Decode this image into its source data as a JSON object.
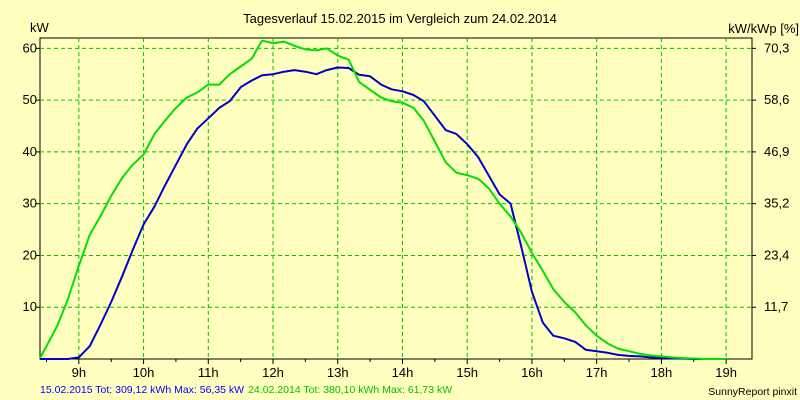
{
  "chart_data": {
    "type": "line",
    "title": "Tagesverlauf 15.02.2015 im Vergleich zum 24.02.2014",
    "ylabel_left": "kW",
    "ylabel_right": "kW/kWp [%]",
    "x_tick_labels": [
      "9h",
      "10h",
      "11h",
      "12h",
      "13h",
      "14h",
      "15h",
      "16h",
      "17h",
      "18h",
      "19h"
    ],
    "x_tick_hours": [
      9,
      10,
      11,
      12,
      13,
      14,
      15,
      16,
      17,
      18,
      19
    ],
    "xlim": [
      8.4,
      19.4
    ],
    "ylim": [
      0,
      62
    ],
    "y_ticks_left": [
      10,
      20,
      30,
      40,
      50,
      60
    ],
    "y_ticks_right": [
      "11,7",
      "23,4",
      "35,2",
      "46,9",
      "58,6",
      "70,3"
    ],
    "grid": true,
    "series": [
      {
        "color": "#0000c8",
        "x": [
          8.4,
          8.5,
          8.67,
          8.83,
          9.0,
          9.17,
          9.33,
          9.5,
          9.67,
          9.83,
          10.0,
          10.17,
          10.33,
          10.5,
          10.67,
          10.83,
          11.0,
          11.17,
          11.33,
          11.5,
          11.67,
          11.83,
          12.0,
          12.17,
          12.33,
          12.5,
          12.67,
          12.83,
          13.0,
          13.17,
          13.33,
          13.5,
          13.67,
          13.83,
          14.0,
          14.17,
          14.33,
          14.5,
          14.67,
          14.83,
          15.0,
          15.17,
          15.33,
          15.5,
          15.67,
          15.83,
          16.0,
          16.17,
          16.33,
          16.5,
          16.67,
          16.83,
          17.0,
          17.17,
          17.33,
          17.5,
          17.67,
          17.83,
          18.0,
          18.17,
          18.33,
          18.5,
          18.67,
          18.83,
          19.0
        ],
        "y": [
          0,
          0,
          0,
          0,
          0.3,
          2.5,
          6.5,
          11,
          16,
          21,
          26,
          29.5,
          33.5,
          37.5,
          41.5,
          44.5,
          46.5,
          48.5,
          49.8,
          52.5,
          53.8,
          54.8,
          55.0,
          55.5,
          55.8,
          55.5,
          55.0,
          55.8,
          56.3,
          56.2,
          54.9,
          54.6,
          53.0,
          52.1,
          51.7,
          51.0,
          49.8,
          47.0,
          44.2,
          43.5,
          41.5,
          39.0,
          35.5,
          31.8,
          30.0,
          22.0,
          13.0,
          7.0,
          4.5,
          4.0,
          3.3,
          1.8,
          1.5,
          1.2,
          0.8,
          0.6,
          0.5,
          0.3,
          0.2,
          0.1,
          0.1,
          0,
          0,
          0,
          0
        ]
      },
      {
        "color": "#00e000",
        "x": [
          8.4,
          8.5,
          8.67,
          8.83,
          9.0,
          9.17,
          9.33,
          9.5,
          9.67,
          9.83,
          10.0,
          10.17,
          10.33,
          10.5,
          10.67,
          10.83,
          11.0,
          11.17,
          11.33,
          11.5,
          11.67,
          11.83,
          12.0,
          12.17,
          12.33,
          12.5,
          12.67,
          12.83,
          13.0,
          13.17,
          13.33,
          13.5,
          13.67,
          13.83,
          14.0,
          14.17,
          14.33,
          14.5,
          14.67,
          14.83,
          15.0,
          15.17,
          15.33,
          15.5,
          15.67,
          15.83,
          16.0,
          16.17,
          16.33,
          16.5,
          16.67,
          16.83,
          17.0,
          17.17,
          17.33,
          17.5,
          17.67,
          17.83,
          18.0,
          18.17,
          18.33,
          18.5,
          18.67,
          18.83,
          19.0
        ],
        "y": [
          0.2,
          2.5,
          6.5,
          11.5,
          18.0,
          24.0,
          27.5,
          31.5,
          35.0,
          37.5,
          39.5,
          43.5,
          46.0,
          48.5,
          50.5,
          51.5,
          53.0,
          53.0,
          55.0,
          56.5,
          58.0,
          61.5,
          61.0,
          61.3,
          60.5,
          59.8,
          59.6,
          60.0,
          58.6,
          57.8,
          53.5,
          52.0,
          50.5,
          49.8,
          49.5,
          48.5,
          46.0,
          42.0,
          38.0,
          36.0,
          35.5,
          34.8,
          33.0,
          30.0,
          27.5,
          24.5,
          20.5,
          17.0,
          13.5,
          11.0,
          9.0,
          6.5,
          4.5,
          3.0,
          2.0,
          1.5,
          1.0,
          0.7,
          0.5,
          0.3,
          0.2,
          0.1,
          0,
          0,
          0
        ]
      }
    ]
  },
  "footer": {
    "series1_summary": "15.02.2015 Tot: 309,12 kWh Max: 56,35 kW",
    "series2_summary": "24.02.2014 Tot: 380,10 kWh Max: 61,73 kW",
    "credit": "SunnyReport pinxit"
  },
  "colors": {
    "background": "#ffffc0",
    "grid": "#00c000",
    "series1_text": "#0000ff",
    "series2_text": "#00c000"
  }
}
